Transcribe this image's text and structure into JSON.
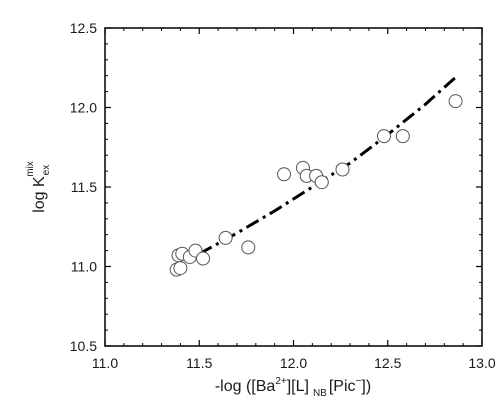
{
  "chart_data": {
    "type": "scatter",
    "xlim": [
      11.0,
      13.0
    ],
    "ylim": [
      10.5,
      12.5
    ],
    "x_ticks": [
      "11.0",
      "11.5",
      "12.0",
      "12.5",
      "13.0"
    ],
    "y_ticks": [
      "10.5",
      "11.0",
      "11.5",
      "12.0",
      "12.5"
    ],
    "xlabel": {
      "pre": "-log ([Ba",
      "sup": "2+",
      "mid": "][L]",
      "sub": "NB",
      "mid2": "[Pic",
      "sup2": "−",
      "post": "])"
    },
    "ylabel": {
      "main": "log K",
      "sub": "ex",
      "sup": "mix"
    },
    "points": [
      {
        "x": 11.38,
        "y": 10.98
      },
      {
        "x": 11.4,
        "y": 10.99
      },
      {
        "x": 11.39,
        "y": 11.07
      },
      {
        "x": 11.41,
        "y": 11.08
      },
      {
        "x": 11.45,
        "y": 11.06
      },
      {
        "x": 11.48,
        "y": 11.1
      },
      {
        "x": 11.52,
        "y": 11.05
      },
      {
        "x": 11.64,
        "y": 11.18
      },
      {
        "x": 11.76,
        "y": 11.12
      },
      {
        "x": 11.95,
        "y": 11.58
      },
      {
        "x": 12.05,
        "y": 11.62
      },
      {
        "x": 12.07,
        "y": 11.57
      },
      {
        "x": 12.12,
        "y": 11.57
      },
      {
        "x": 12.15,
        "y": 11.53
      },
      {
        "x": 12.26,
        "y": 11.61
      },
      {
        "x": 12.48,
        "y": 11.82
      },
      {
        "x": 12.58,
        "y": 11.82
      },
      {
        "x": 12.86,
        "y": 12.04
      }
    ],
    "fit_line": {
      "style": "dash-dot",
      "x": [
        11.5,
        11.7,
        11.9,
        12.1,
        12.3,
        12.5,
        12.7,
        12.86
      ],
      "y": [
        11.08,
        11.21,
        11.35,
        11.5,
        11.65,
        11.83,
        12.02,
        12.19
      ]
    }
  }
}
